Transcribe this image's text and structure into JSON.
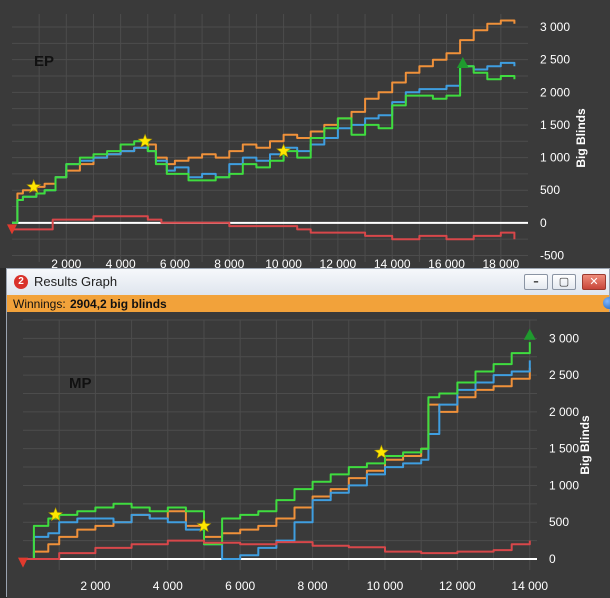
{
  "window": {
    "title": "Results Graph",
    "app_icon_glyph": "2",
    "winnings_label": "Winnings:",
    "winnings_value": "2904,2 big blinds",
    "buttons": {
      "minimize_glyph": "–",
      "maximize_glyph": "▢",
      "close_glyph": "✕"
    }
  },
  "colors": {
    "background": "#3a3a3a",
    "grid": "#4c4c4c",
    "axis_text": "#ffffff",
    "orange": "#f0913a",
    "blue": "#3f9ee0",
    "green": "#3fdc3f",
    "red": "#d8474a",
    "zero_line": "#ffffff",
    "star": "#ffe700",
    "winnings_bar": "#f2a23a"
  },
  "chart_data": [
    {
      "type": "line",
      "label": "EP",
      "xlabel": "",
      "ylabel": "Big Blinds",
      "xlim": [
        0,
        19000
      ],
      "ylim": [
        -600,
        3200
      ],
      "x_ticks": [
        {
          "v": 2000,
          "t": "2 000"
        },
        {
          "v": 4000,
          "t": "4 000"
        },
        {
          "v": 6000,
          "t": "6 000"
        },
        {
          "v": 8000,
          "t": "8 000"
        },
        {
          "v": 10000,
          "t": "10 000"
        },
        {
          "v": 12000,
          "t": "12 000"
        },
        {
          "v": 14000,
          "t": "14 000"
        },
        {
          "v": 16000,
          "t": "16 000"
        },
        {
          "v": 18000,
          "t": "18 000"
        }
      ],
      "y_ticks": [
        {
          "v": 3000,
          "t": "3 000"
        },
        {
          "v": 2500,
          "t": "2 500"
        },
        {
          "v": 2000,
          "t": "2 000"
        },
        {
          "v": 1500,
          "t": "1 500"
        },
        {
          "v": 1000,
          "t": "1 000"
        },
        {
          "v": 500,
          "t": "500"
        },
        {
          "v": 0,
          "t": "0"
        },
        {
          "v": -500,
          "t": "-500"
        }
      ],
      "series": [
        {
          "name": "orange",
          "x": [
            0,
            200,
            400,
            900,
            1200,
            1600,
            2000,
            2500,
            3000,
            3500,
            4000,
            4500,
            5000,
            5300,
            5700,
            6000,
            6500,
            7000,
            7500,
            8000,
            8500,
            9000,
            9500,
            10000,
            10500,
            11000,
            11500,
            12000,
            12500,
            13000,
            13500,
            14000,
            14500,
            15000,
            15500,
            16000,
            16500,
            17000,
            17500,
            18000,
            18500
          ],
          "y": [
            0,
            450,
            500,
            550,
            600,
            700,
            800,
            900,
            1000,
            1050,
            1100,
            1150,
            1200,
            1000,
            900,
            950,
            1000,
            1050,
            1000,
            1100,
            1200,
            1150,
            1250,
            1350,
            1300,
            1400,
            1500,
            1600,
            1700,
            1900,
            2000,
            2150,
            2300,
            2400,
            2500,
            2600,
            2800,
            2950,
            3050,
            3100,
            3050
          ]
        },
        {
          "name": "blue",
          "x": [
            0,
            200,
            400,
            900,
            1200,
            1600,
            2000,
            2500,
            3000,
            3500,
            4000,
            4500,
            5000,
            5300,
            5700,
            6000,
            6500,
            7000,
            7500,
            8000,
            8500,
            9000,
            9500,
            10000,
            10500,
            11000,
            11500,
            12000,
            12500,
            13000,
            13500,
            14000,
            14500,
            15000,
            15500,
            16000,
            16500,
            17000,
            17500,
            18000,
            18500
          ],
          "y": [
            0,
            350,
            400,
            450,
            500,
            700,
            900,
            950,
            1000,
            1050,
            1100,
            1150,
            1100,
            950,
            800,
            850,
            700,
            750,
            700,
            900,
            1000,
            950,
            1050,
            1150,
            1100,
            1200,
            1300,
            1450,
            1500,
            1600,
            1650,
            1850,
            2000,
            2050,
            2050,
            2100,
            2400,
            2350,
            2400,
            2450,
            2400
          ]
        },
        {
          "name": "green",
          "x": [
            0,
            200,
            400,
            900,
            1200,
            1600,
            2000,
            2500,
            3000,
            3500,
            4000,
            4500,
            5000,
            5300,
            5700,
            6000,
            6500,
            7000,
            7500,
            8000,
            8500,
            9000,
            9500,
            10000,
            10500,
            11000,
            11500,
            12000,
            12500,
            13000,
            13500,
            14000,
            14500,
            15000,
            15500,
            16000,
            16500,
            17000,
            17500,
            18000,
            18500
          ],
          "y": [
            0,
            350,
            400,
            450,
            500,
            700,
            900,
            1000,
            1050,
            1100,
            1200,
            1250,
            1100,
            900,
            750,
            750,
            650,
            650,
            700,
            750,
            900,
            850,
            950,
            1100,
            1000,
            1300,
            1450,
            1600,
            1350,
            1500,
            1450,
            1800,
            1950,
            1950,
            1900,
            1950,
            2400,
            2300,
            2200,
            2250,
            2200
          ]
        },
        {
          "name": "red",
          "x": [
            0,
            1500,
            3000,
            4500,
            5000,
            5500,
            8000,
            10000,
            10500,
            11000,
            12000,
            13000,
            14000,
            15000,
            16000,
            17000,
            18000,
            18500
          ],
          "y": [
            -100,
            50,
            100,
            100,
            50,
            0,
            -50,
            -50,
            -100,
            -150,
            -150,
            -200,
            -250,
            -200,
            -250,
            -200,
            -150,
            -250
          ]
        }
      ],
      "stars": [
        {
          "x": 800,
          "y": 550
        },
        {
          "x": 4900,
          "y": 1250
        },
        {
          "x": 10000,
          "y": 1100
        }
      ],
      "start_marker": {
        "x": 0,
        "y": -100
      },
      "end_marker": {
        "x": 16600,
        "y": 2450
      }
    },
    {
      "type": "line",
      "label": "MP",
      "xlabel": "",
      "ylabel": "Big Blinds",
      "xlim": [
        0,
        14200
      ],
      "ylim": [
        -150,
        3250
      ],
      "x_ticks": [
        {
          "v": 2000,
          "t": "2 000"
        },
        {
          "v": 4000,
          "t": "4 000"
        },
        {
          "v": 6000,
          "t": "6 000"
        },
        {
          "v": 8000,
          "t": "8 000"
        },
        {
          "v": 10000,
          "t": "10 000"
        },
        {
          "v": 12000,
          "t": "12 000"
        },
        {
          "v": 14000,
          "t": "14 000"
        }
      ],
      "y_ticks": [
        {
          "v": 3000,
          "t": "3 000"
        },
        {
          "v": 2500,
          "t": "2 500"
        },
        {
          "v": 2000,
          "t": "2 000"
        },
        {
          "v": 1500,
          "t": "1 500"
        },
        {
          "v": 1000,
          "t": "1 000"
        },
        {
          "v": 500,
          "t": "500"
        },
        {
          "v": 0,
          "t": "0"
        }
      ],
      "series": [
        {
          "name": "orange",
          "x": [
            0,
            300,
            700,
            1000,
            1500,
            2000,
            2500,
            3000,
            3500,
            4000,
            4500,
            5000,
            5500,
            6000,
            6500,
            7000,
            7500,
            8000,
            8500,
            9000,
            9500,
            10000,
            10500,
            11000,
            11200,
            11500,
            12000,
            12500,
            13000,
            13500,
            14000
          ],
          "y": [
            0,
            100,
            200,
            300,
            400,
            450,
            500,
            600,
            550,
            650,
            450,
            300,
            350,
            400,
            450,
            550,
            700,
            850,
            950,
            1100,
            1200,
            1350,
            1400,
            1500,
            2100,
            2000,
            2200,
            2300,
            2350,
            2450,
            2600
          ]
        },
        {
          "name": "blue",
          "x": [
            0,
            300,
            700,
            1000,
            1500,
            2000,
            2500,
            3000,
            3500,
            4000,
            4500,
            5000,
            5500,
            6000,
            6500,
            7000,
            7500,
            8000,
            8500,
            9000,
            9500,
            10000,
            10500,
            11000,
            11200,
            11500,
            12000,
            12500,
            13000,
            13500,
            14000
          ],
          "y": [
            0,
            300,
            350,
            500,
            550,
            550,
            500,
            600,
            550,
            500,
            400,
            200,
            0,
            50,
            150,
            250,
            500,
            800,
            900,
            1000,
            1150,
            1250,
            1300,
            1350,
            1700,
            2100,
            2300,
            2400,
            2500,
            2550,
            2700
          ]
        },
        {
          "name": "green",
          "x": [
            0,
            300,
            700,
            1000,
            1500,
            2000,
            2500,
            3000,
            3500,
            4000,
            4500,
            5000,
            5500,
            6000,
            6500,
            7000,
            7500,
            8000,
            8500,
            9000,
            9500,
            10000,
            10500,
            11000,
            11200,
            11500,
            12000,
            12500,
            13000,
            13500,
            14000
          ],
          "y": [
            0,
            450,
            550,
            600,
            650,
            700,
            750,
            700,
            650,
            700,
            650,
            200,
            550,
            600,
            650,
            800,
            950,
            1050,
            1150,
            1250,
            1300,
            1400,
            1450,
            1500,
            2200,
            2250,
            2400,
            2550,
            2650,
            2800,
            2950
          ]
        },
        {
          "name": "red",
          "x": [
            0,
            1000,
            2000,
            3000,
            4000,
            5000,
            6000,
            7000,
            8000,
            9000,
            10000,
            11000,
            12000,
            13000,
            13500,
            14000
          ],
          "y": [
            0,
            80,
            150,
            200,
            250,
            220,
            200,
            230,
            180,
            160,
            100,
            80,
            100,
            120,
            200,
            250
          ]
        }
      ],
      "stars": [
        {
          "x": 900,
          "y": 600
        },
        {
          "x": 5000,
          "y": 450
        },
        {
          "x": 9900,
          "y": 1450
        }
      ],
      "start_marker": {
        "x": 0,
        "y": -50
      },
      "end_marker": {
        "x": 14000,
        "y": 3050
      }
    }
  ]
}
